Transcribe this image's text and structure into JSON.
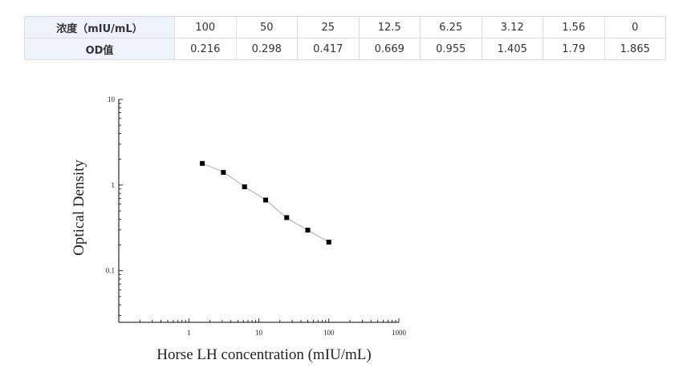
{
  "table": {
    "row_headers": [
      "浓度（mIU/mL）",
      "OD值"
    ],
    "concentrations": [
      "100",
      "50",
      "25",
      "12.5",
      "6.25",
      "3.12",
      "1.56",
      "0"
    ],
    "od_values": [
      "0.216",
      "0.298",
      "0.417",
      "0.669",
      "0.955",
      "1.405",
      "1.79",
      "1.865"
    ]
  },
  "chart_data": {
    "type": "scatter",
    "title": "",
    "xlabel": "Horse LH concentration (mIU/mL)",
    "ylabel": "Optical Density",
    "xscale": "log",
    "yscale": "log",
    "xlim": [
      0.1,
      1000
    ],
    "ylim": [
      0.025,
      10
    ],
    "xticks": [
      "1",
      "10",
      "100",
      "1000"
    ],
    "yticks": [
      "10",
      "1",
      "0.1"
    ],
    "grid": false,
    "legend": "none",
    "fit_curve": true,
    "marker_color": "#000000",
    "curve_color": "#aaaaaa",
    "points": [
      {
        "x": 1.56,
        "y": 1.79
      },
      {
        "x": 3.12,
        "y": 1.405
      },
      {
        "x": 6.25,
        "y": 0.955
      },
      {
        "x": 12.5,
        "y": 0.669
      },
      {
        "x": 25,
        "y": 0.417
      },
      {
        "x": 50,
        "y": 0.298
      },
      {
        "x": 100,
        "y": 0.216
      }
    ]
  }
}
